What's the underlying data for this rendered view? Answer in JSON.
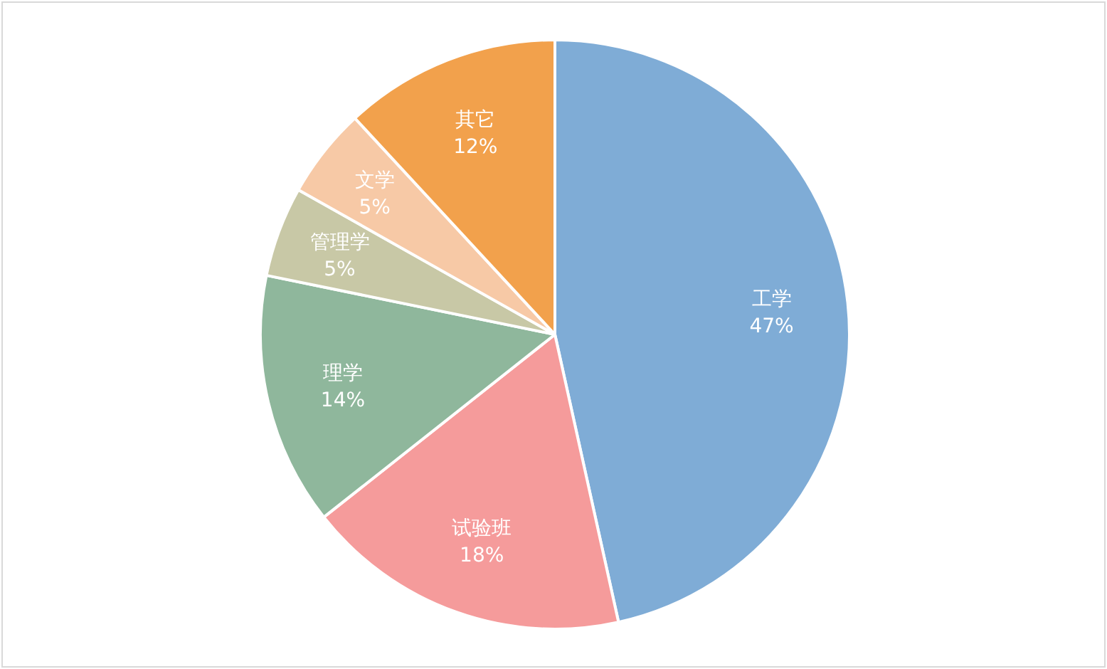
{
  "chart_data": {
    "type": "pie",
    "categories": [
      "工学",
      "试验班",
      "理学",
      "管理学",
      "文学",
      "其它"
    ],
    "values": [
      47,
      18,
      14,
      5,
      5,
      12
    ],
    "colors": [
      "#7facd6",
      "#f59b9b",
      "#8fb79c",
      "#c8c8a6",
      "#f7c9a6",
      "#f2a14c"
    ],
    "value_labels": [
      "47%",
      "18%",
      "14%",
      "5%",
      "5%",
      "12%"
    ],
    "legend": false
  }
}
